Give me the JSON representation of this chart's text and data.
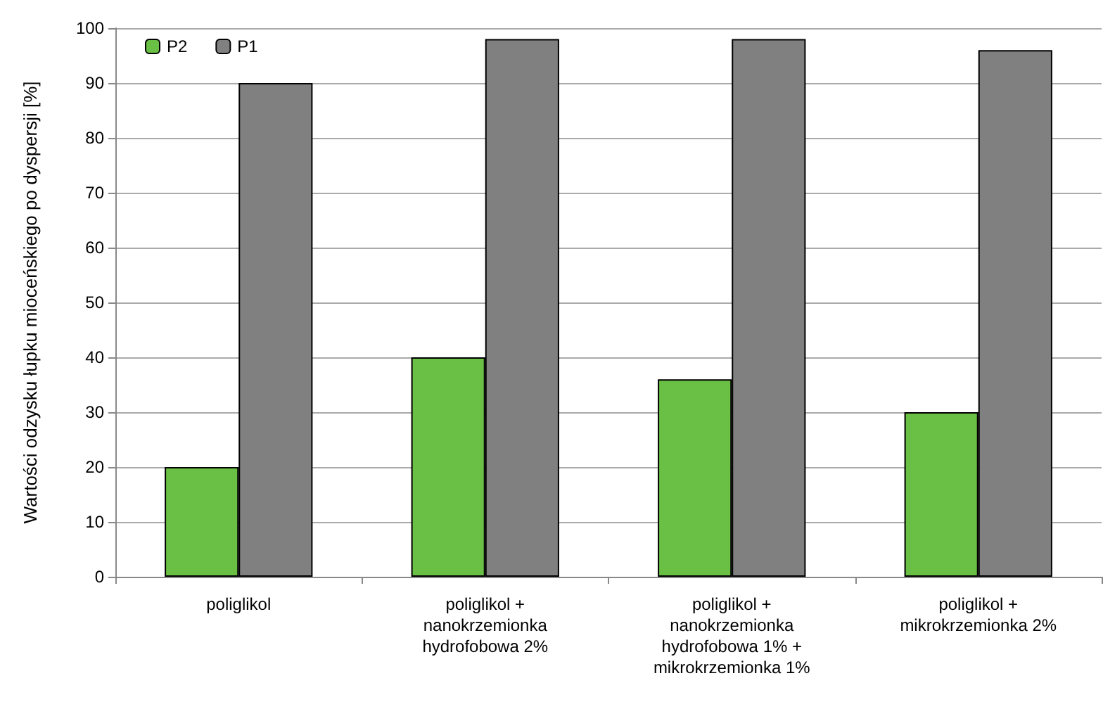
{
  "chart_data": {
    "type": "bar",
    "ylabel": "Wartości odzysku łupku mioceńskiego po dyspersji [%]",
    "categories": [
      "poliglikol",
      "poliglikol +\nnanokrzemionka\nhydrofobowa 2%",
      "poliglikol +\nnanokrzemionka\nhydrofobowa 1% +\nmikrokrzemionka 1%",
      "poliglikol +\nmikrokrzemionka 2%"
    ],
    "series": [
      {
        "name": "P2",
        "color": "#6abf45",
        "values": [
          20,
          40,
          36,
          30
        ]
      },
      {
        "name": "P1",
        "color": "#808080",
        "values": [
          90,
          98,
          98,
          96
        ]
      }
    ],
    "ylim": [
      0,
      100
    ],
    "yticks": [
      0,
      10,
      20,
      30,
      40,
      50,
      60,
      70,
      80,
      90,
      100
    ],
    "grid": "y",
    "legend": "top left"
  }
}
